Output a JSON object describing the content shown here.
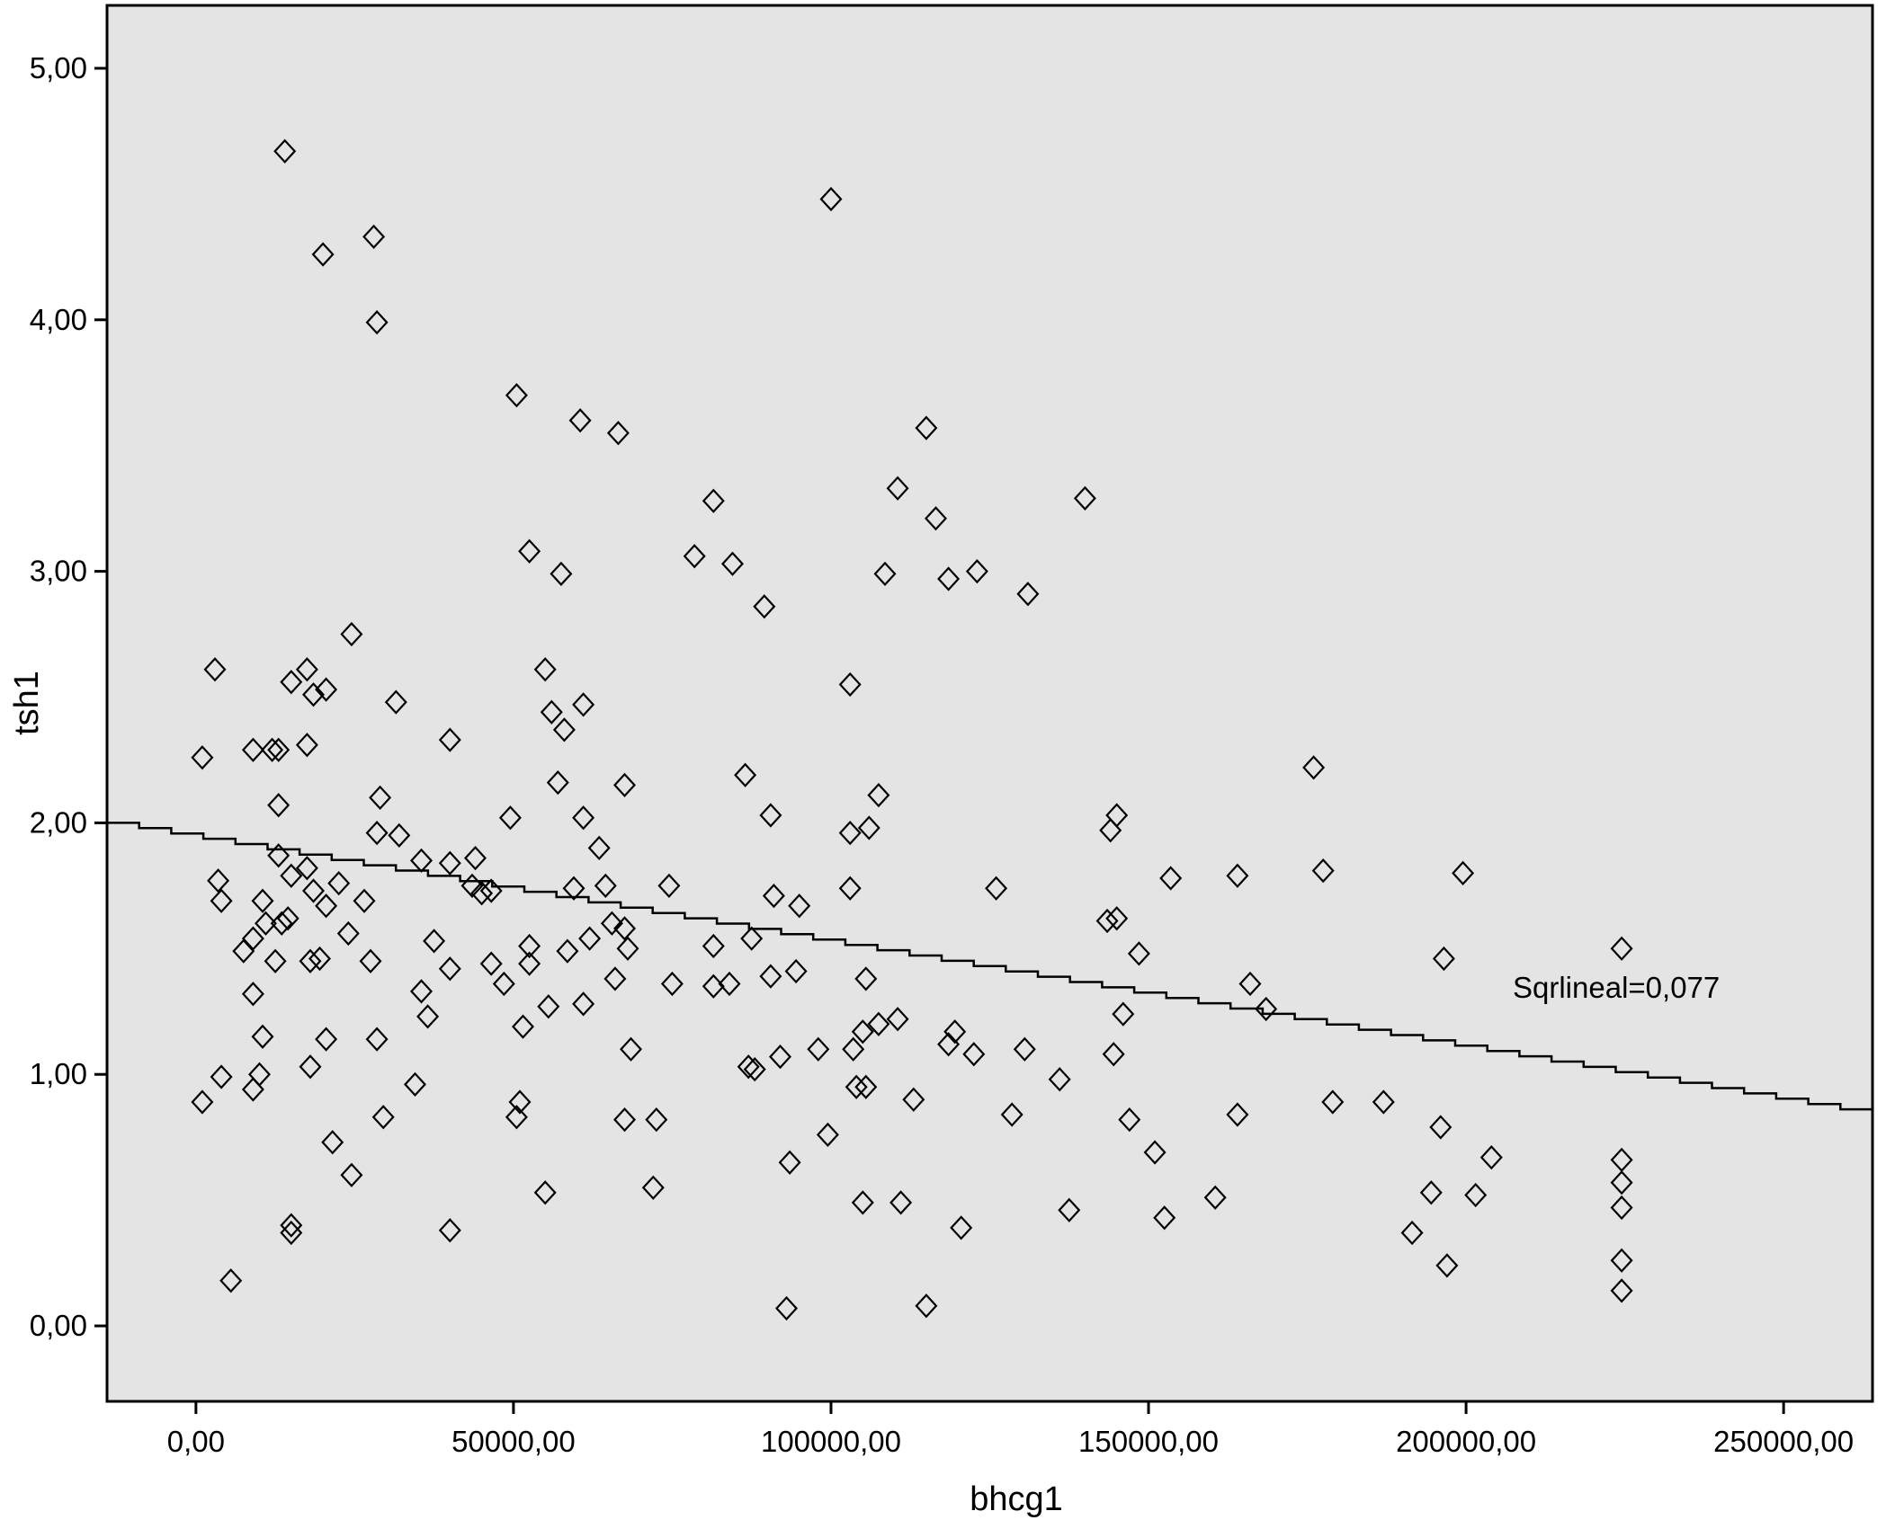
{
  "chart_data": {
    "type": "scatter",
    "title": "",
    "xlabel": "bhcg1",
    "ylabel": "tsh1",
    "xlim": [
      -14000,
      264000
    ],
    "ylim": [
      -0.3,
      5.25
    ],
    "x_ticks": [
      0,
      50000,
      100000,
      150000,
      200000,
      250000
    ],
    "y_ticks": [
      0,
      1,
      2,
      3,
      4,
      5
    ],
    "x_tick_labels": [
      "0,00",
      "50000,00",
      "100000,00",
      "150000,00",
      "200000,00",
      "250000,00"
    ],
    "y_tick_labels": [
      "0,00",
      "1,00",
      "2,00",
      "3,00",
      "4,00",
      "5,00"
    ],
    "grid": false,
    "marker": "diamond",
    "fit_line": {
      "type": "linear",
      "label": "Sqrlineal=0,077",
      "x": [
        -14000,
        264000
      ],
      "y": [
        2.0,
        0.84
      ]
    },
    "points": [
      [
        14000,
        4.67
      ],
      [
        100000,
        4.48
      ],
      [
        28000,
        4.33
      ],
      [
        20000,
        4.26
      ],
      [
        28500,
        3.99
      ],
      [
        50500,
        3.7
      ],
      [
        60500,
        3.6
      ],
      [
        66500,
        3.55
      ],
      [
        115000,
        3.57
      ],
      [
        110500,
        3.33
      ],
      [
        81500,
        3.28
      ],
      [
        140000,
        3.29
      ],
      [
        116500,
        3.21
      ],
      [
        52500,
        3.08
      ],
      [
        78500,
        3.06
      ],
      [
        84500,
        3.03
      ],
      [
        57500,
        2.99
      ],
      [
        108500,
        2.99
      ],
      [
        118500,
        2.97
      ],
      [
        123000,
        3.0
      ],
      [
        131000,
        2.91
      ],
      [
        89500,
        2.86
      ],
      [
        24500,
        2.75
      ],
      [
        3000,
        2.61
      ],
      [
        17500,
        2.61
      ],
      [
        55000,
        2.61
      ],
      [
        15000,
        2.56
      ],
      [
        20500,
        2.53
      ],
      [
        18500,
        2.51
      ],
      [
        103000,
        2.55
      ],
      [
        31500,
        2.48
      ],
      [
        61000,
        2.47
      ],
      [
        56000,
        2.44
      ],
      [
        58000,
        2.37
      ],
      [
        40000,
        2.33
      ],
      [
        12000,
        2.29
      ],
      [
        9000,
        2.29
      ],
      [
        13000,
        2.29
      ],
      [
        17500,
        2.31
      ],
      [
        1000,
        2.26
      ],
      [
        176000,
        2.22
      ],
      [
        86500,
        2.19
      ],
      [
        57000,
        2.16
      ],
      [
        67500,
        2.15
      ],
      [
        107500,
        2.11
      ],
      [
        29000,
        2.1
      ],
      [
        13000,
        2.07
      ],
      [
        90500,
        2.03
      ],
      [
        61000,
        2.02
      ],
      [
        145000,
        2.03
      ],
      [
        49500,
        2.02
      ],
      [
        28500,
        1.96
      ],
      [
        32000,
        1.95
      ],
      [
        103000,
        1.96
      ],
      [
        106000,
        1.98
      ],
      [
        144000,
        1.97
      ],
      [
        63500,
        1.9
      ],
      [
        13000,
        1.87
      ],
      [
        44000,
        1.86
      ],
      [
        35500,
        1.85
      ],
      [
        40000,
        1.84
      ],
      [
        17500,
        1.82
      ],
      [
        177500,
        1.81
      ],
      [
        199500,
        1.8
      ],
      [
        15000,
        1.79
      ],
      [
        153500,
        1.78
      ],
      [
        164000,
        1.79
      ],
      [
        3500,
        1.77
      ],
      [
        22500,
        1.76
      ],
      [
        18500,
        1.73
      ],
      [
        59500,
        1.74
      ],
      [
        64500,
        1.75
      ],
      [
        74500,
        1.75
      ],
      [
        103000,
        1.74
      ],
      [
        126000,
        1.74
      ],
      [
        43500,
        1.75
      ],
      [
        46500,
        1.73
      ],
      [
        45000,
        1.72
      ],
      [
        4000,
        1.69
      ],
      [
        10500,
        1.69
      ],
      [
        26500,
        1.69
      ],
      [
        91000,
        1.71
      ],
      [
        20500,
        1.67
      ],
      [
        95000,
        1.67
      ],
      [
        14500,
        1.62
      ],
      [
        11000,
        1.6
      ],
      [
        13500,
        1.6
      ],
      [
        65500,
        1.6
      ],
      [
        67500,
        1.58
      ],
      [
        143500,
        1.61
      ],
      [
        145000,
        1.62
      ],
      [
        37500,
        1.53
      ],
      [
        9000,
        1.54
      ],
      [
        24000,
        1.56
      ],
      [
        62000,
        1.54
      ],
      [
        68000,
        1.5
      ],
      [
        87500,
        1.54
      ],
      [
        58500,
        1.49
      ],
      [
        81500,
        1.51
      ],
      [
        52500,
        1.51
      ],
      [
        148500,
        1.48
      ],
      [
        224500,
        1.5
      ],
      [
        7500,
        1.49
      ],
      [
        12500,
        1.45
      ],
      [
        19500,
        1.46
      ],
      [
        18000,
        1.45
      ],
      [
        27500,
        1.45
      ],
      [
        40000,
        1.42
      ],
      [
        52500,
        1.44
      ],
      [
        46500,
        1.44
      ],
      [
        94500,
        1.41
      ],
      [
        90500,
        1.39
      ],
      [
        105500,
        1.38
      ],
      [
        196500,
        1.46
      ],
      [
        48500,
        1.36
      ],
      [
        66000,
        1.38
      ],
      [
        75000,
        1.36
      ],
      [
        81500,
        1.35
      ],
      [
        84000,
        1.36
      ],
      [
        35500,
        1.33
      ],
      [
        9000,
        1.32
      ],
      [
        166000,
        1.36
      ],
      [
        168500,
        1.26
      ],
      [
        55500,
        1.27
      ],
      [
        61000,
        1.28
      ],
      [
        36500,
        1.23
      ],
      [
        146000,
        1.24
      ],
      [
        51500,
        1.19
      ],
      [
        110500,
        1.22
      ],
      [
        107500,
        1.2
      ],
      [
        105000,
        1.17
      ],
      [
        119500,
        1.17
      ],
      [
        10500,
        1.15
      ],
      [
        20500,
        1.14
      ],
      [
        28500,
        1.14
      ],
      [
        118500,
        1.12
      ],
      [
        68500,
        1.1
      ],
      [
        98000,
        1.1
      ],
      [
        103500,
        1.1
      ],
      [
        130500,
        1.1
      ],
      [
        92000,
        1.07
      ],
      [
        122500,
        1.08
      ],
      [
        144500,
        1.08
      ],
      [
        88000,
        1.02
      ],
      [
        87000,
        1.03
      ],
      [
        18000,
        1.03
      ],
      [
        10000,
        1.0
      ],
      [
        4000,
        0.99
      ],
      [
        136000,
        0.98
      ],
      [
        34500,
        0.96
      ],
      [
        104000,
        0.95
      ],
      [
        105500,
        0.95
      ],
      [
        9000,
        0.94
      ],
      [
        1000,
        0.89
      ],
      [
        51000,
        0.89
      ],
      [
        113000,
        0.9
      ],
      [
        179000,
        0.89
      ],
      [
        187000,
        0.89
      ],
      [
        50500,
        0.83
      ],
      [
        29500,
        0.83
      ],
      [
        67500,
        0.82
      ],
      [
        72500,
        0.82
      ],
      [
        128500,
        0.84
      ],
      [
        164000,
        0.84
      ],
      [
        147000,
        0.82
      ],
      [
        196000,
        0.79
      ],
      [
        99500,
        0.76
      ],
      [
        21500,
        0.73
      ],
      [
        151000,
        0.69
      ],
      [
        204000,
        0.67
      ],
      [
        224500,
        0.66
      ],
      [
        93500,
        0.65
      ],
      [
        24500,
        0.6
      ],
      [
        224500,
        0.57
      ],
      [
        72000,
        0.55
      ],
      [
        55000,
        0.53
      ],
      [
        160500,
        0.51
      ],
      [
        194500,
        0.53
      ],
      [
        201500,
        0.52
      ],
      [
        105000,
        0.49
      ],
      [
        111000,
        0.49
      ],
      [
        224500,
        0.47
      ],
      [
        137500,
        0.46
      ],
      [
        152500,
        0.43
      ],
      [
        15000,
        0.4
      ],
      [
        40000,
        0.38
      ],
      [
        15000,
        0.37
      ],
      [
        120500,
        0.39
      ],
      [
        191500,
        0.37
      ],
      [
        224500,
        0.26
      ],
      [
        197000,
        0.24
      ],
      [
        5500,
        0.18
      ],
      [
        224500,
        0.14
      ],
      [
        115000,
        0.08
      ],
      [
        93000,
        0.07
      ]
    ]
  }
}
